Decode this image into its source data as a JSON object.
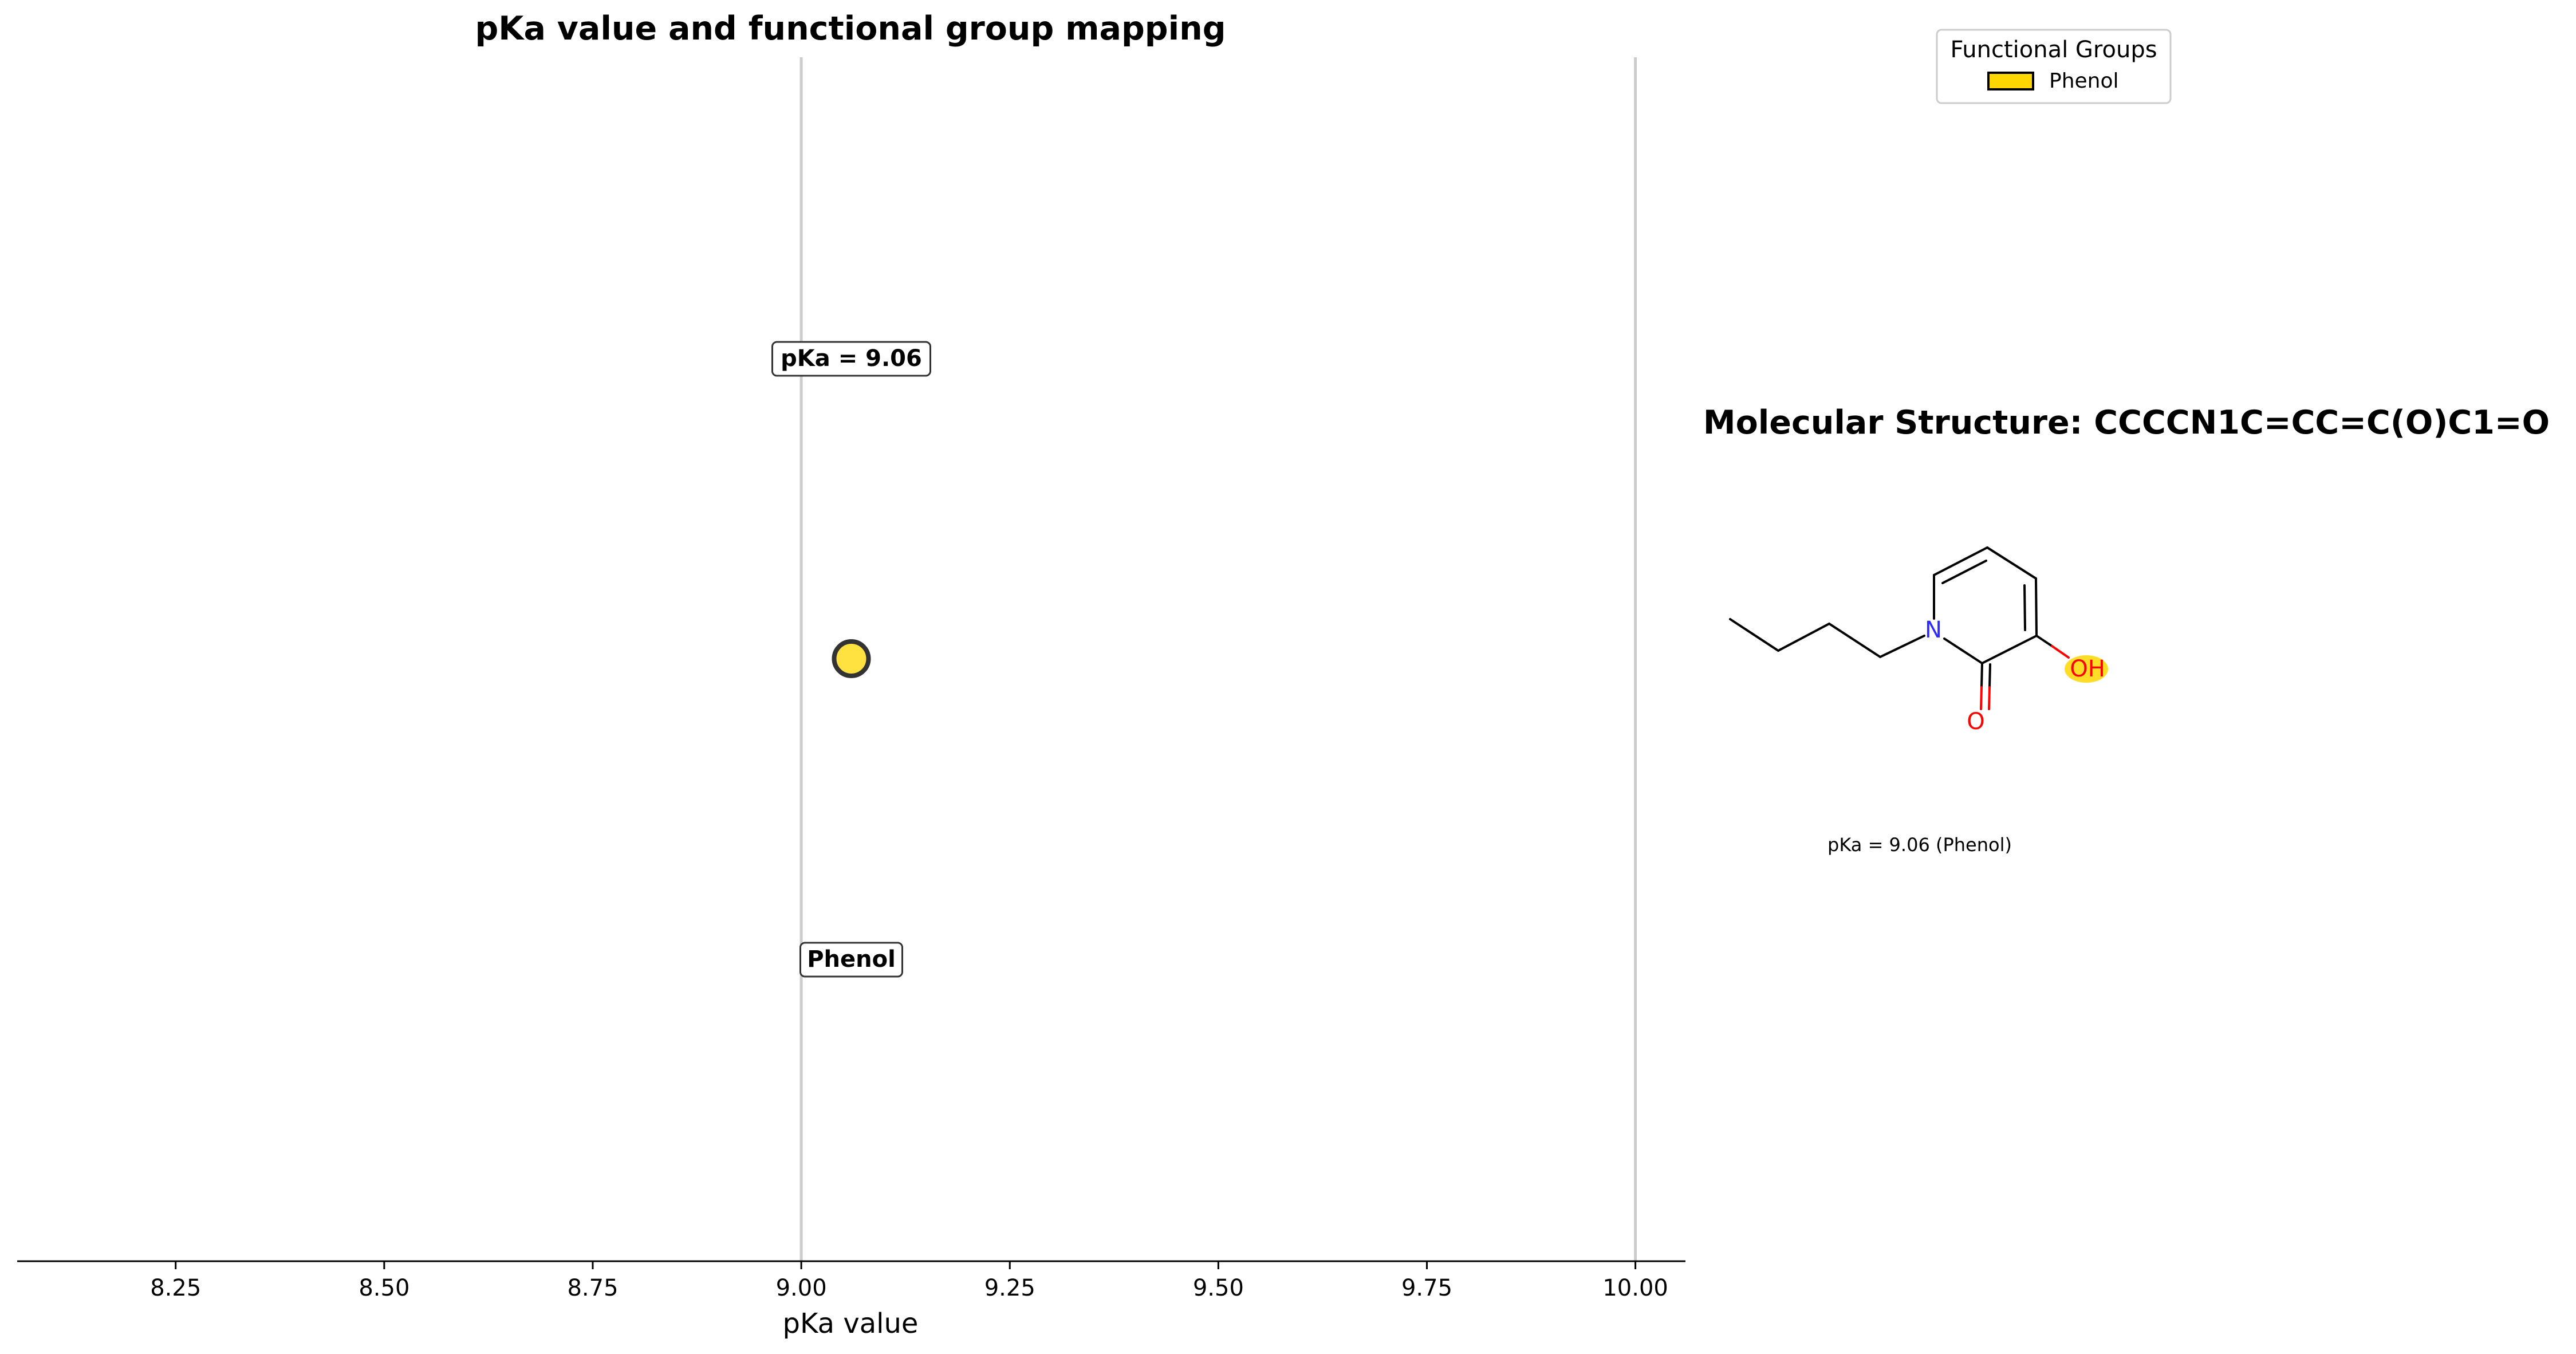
{
  "chart_data": {
    "type": "scatter",
    "title": "pKa value and functional group mapping",
    "xlabel": "pKa value",
    "ylabel": "",
    "xlim": [
      8.06,
      10.06
    ],
    "xticks": [
      "8.25",
      "8.50",
      "8.75",
      "9.00",
      "9.25",
      "9.50",
      "9.75",
      "10.00"
    ],
    "xtick_values": [
      8.25,
      8.5,
      8.75,
      9.0,
      9.25,
      9.5,
      9.75,
      10.0
    ],
    "reference_lines": [
      9.0,
      10.0
    ],
    "grid": false,
    "points": [
      {
        "x": 9.06,
        "group": "Phenol",
        "color": "#FFD700"
      }
    ],
    "annotations": {
      "pka_label": "pKa = 9.06",
      "group_label": "Phenol"
    },
    "legend": {
      "title": "Functional Groups",
      "placement": "top-right",
      "entries": [
        {
          "label": "Phenol",
          "color": "#FFD700"
        }
      ]
    }
  },
  "structure": {
    "title": "Molecular Structure: CCCCN1C=CC=C(O)C1=O",
    "atoms": {
      "n": "N",
      "oh": "OH",
      "o": "O"
    },
    "caption": "pKa = 9.06 (Phenol)",
    "highlight_color": "#FFD700",
    "colors": {
      "nitrogen": "#2B2BFF",
      "oxygen": "#FF0000",
      "bond": "#000000"
    }
  }
}
